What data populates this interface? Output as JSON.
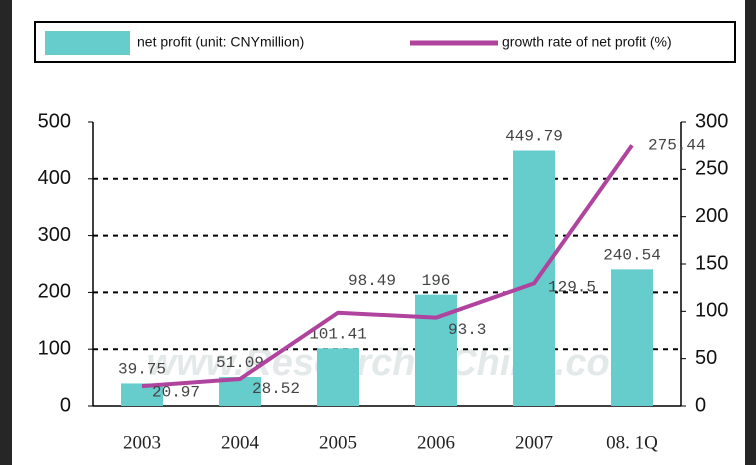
{
  "chart_data": {
    "type": "bar-line",
    "categories": [
      "2003",
      "2004",
      "2005",
      "2006",
      "2007",
      "08. 1Q"
    ],
    "series": [
      {
        "name": "net profit (unit: CNYmillion)",
        "type": "bar",
        "color": "#66cccc",
        "values": [
          39.75,
          51.09,
          101.41,
          196,
          449.79,
          240.54
        ]
      },
      {
        "name": "growth rate of net profit (%)",
        "type": "line",
        "axis": "y2",
        "color": "#b0439e",
        "values": [
          20.97,
          28.52,
          98.49,
          93.3,
          129.5,
          275.44
        ]
      }
    ],
    "ylim": [
      0,
      500
    ],
    "yticks": [
      0,
      100,
      200,
      300,
      400,
      500
    ],
    "y2lim": [
      0,
      300
    ],
    "y2ticks": [
      0,
      50,
      100,
      150,
      200,
      250,
      300
    ],
    "grid": true,
    "watermark": "www.ResearchInChina.com"
  }
}
